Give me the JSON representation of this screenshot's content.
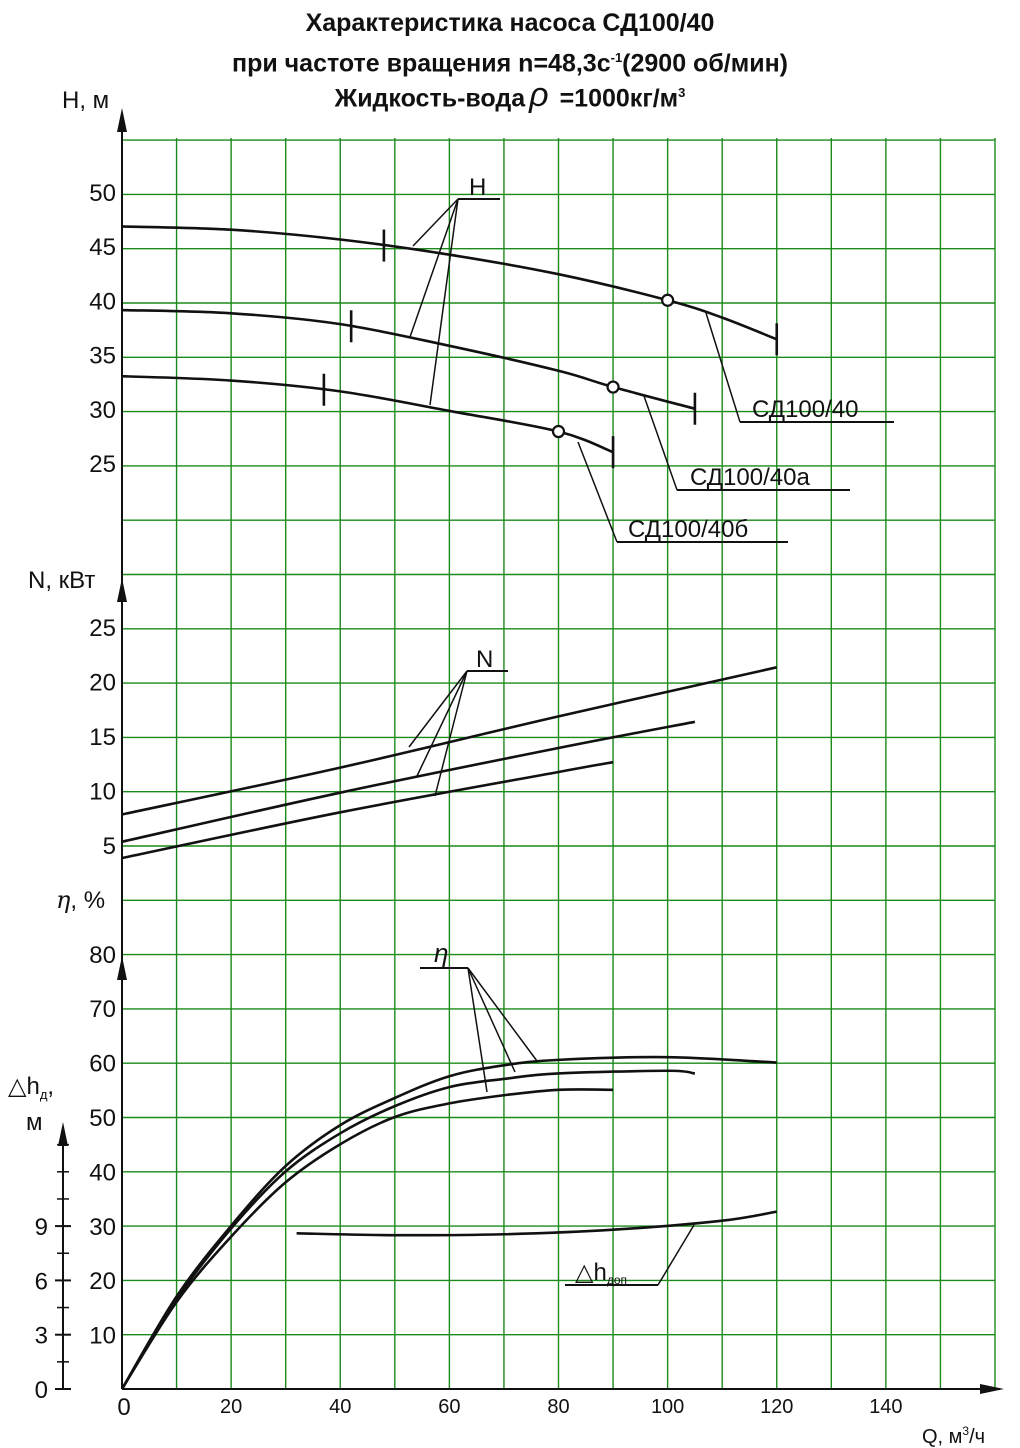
{
  "title": {
    "line1": "Характеристика насоса СД100/40",
    "line2_pre": "при частоте вращения n=48,3с",
    "line2_sup": "-1",
    "line2_post": "(2900 об/мин)",
    "line3_pre": "Жидкость-вода",
    "line3_rho": "ρ",
    "line3_post": " =1000кг/м",
    "line3_sup": "3"
  },
  "chart_data": {
    "type": "line",
    "grid": true,
    "x": {
      "label": "Q, м",
      "label_sup": "3",
      "label_post": "/ч",
      "range": [
        0,
        160
      ],
      "ticks": [
        0,
        20,
        40,
        60,
        80,
        100,
        120,
        140
      ]
    },
    "axes": {
      "H": {
        "label": "H, м",
        "range": [
          20,
          55
        ],
        "ticks": [
          25,
          30,
          35,
          40,
          45,
          50
        ]
      },
      "N": {
        "label": "N, кВт",
        "range": [
          0,
          30
        ],
        "ticks": [
          5,
          10,
          15,
          20,
          25
        ]
      },
      "eta": {
        "label_sym": "η",
        "label_post": ", %",
        "range": [
          0,
          80
        ],
        "ticks": [
          0,
          10,
          20,
          30,
          40,
          50,
          60,
          70,
          80
        ]
      },
      "dh": {
        "label_sym": "△h",
        "label_sub": "д",
        "label_post": ",",
        "label_unit": "м",
        "range": [
          0,
          18
        ],
        "ticks": [
          0,
          3,
          6,
          9
        ]
      }
    },
    "series": {
      "H": [
        {
          "name": "СД100/40",
          "points": [
            [
              0,
              46.8
            ],
            [
              20,
              46.5
            ],
            [
              40,
              45.6
            ],
            [
              60,
              44.2
            ],
            [
              80,
              42.4
            ],
            [
              100,
              40.0
            ],
            [
              110,
              38.4
            ],
            [
              120,
              36.4
            ]
          ],
          "work_range": [
            48,
            120
          ],
          "optimum": [
            100,
            40.0
          ]
        },
        {
          "name": "СД100/40а",
          "points": [
            [
              0,
              39.1
            ],
            [
              20,
              38.8
            ],
            [
              40,
              37.8
            ],
            [
              60,
              35.8
            ],
            [
              80,
              33.5
            ],
            [
              90,
              32.0
            ],
            [
              105,
              30.0
            ]
          ],
          "work_range": [
            42,
            105
          ],
          "optimum": [
            90,
            32.0
          ]
        },
        {
          "name": "СД100/40б",
          "points": [
            [
              0,
              33.0
            ],
            [
              20,
              32.6
            ],
            [
              40,
              31.6
            ],
            [
              60,
              29.8
            ],
            [
              80,
              27.9
            ],
            [
              90,
              26.0
            ]
          ],
          "work_range": [
            37,
            90
          ],
          "optimum": [
            80,
            27.9
          ]
        }
      ],
      "N": [
        {
          "points": [
            [
              0,
              7.8
            ],
            [
              40,
              12.1
            ],
            [
              80,
              16.8
            ],
            [
              120,
              21.3
            ]
          ]
        },
        {
          "points": [
            [
              0,
              5.3
            ],
            [
              40,
              9.8
            ],
            [
              80,
              13.9
            ],
            [
              105,
              16.3
            ]
          ]
        },
        {
          "points": [
            [
              0,
              3.8
            ],
            [
              40,
              8.0
            ],
            [
              80,
              11.7
            ],
            [
              90,
              12.6
            ]
          ]
        }
      ],
      "eta": [
        {
          "points": [
            [
              0,
              0
            ],
            [
              10,
              17
            ],
            [
              20,
              30
            ],
            [
              30,
              41
            ],
            [
              40,
              48.5
            ],
            [
              50,
              53.5
            ],
            [
              60,
              57.5
            ],
            [
              70,
              59.5
            ],
            [
              80,
              60.5
            ],
            [
              100,
              61
            ],
            [
              120,
              60
            ]
          ]
        },
        {
          "points": [
            [
              0,
              0
            ],
            [
              10,
              16.5
            ],
            [
              20,
              29.5
            ],
            [
              30,
              40
            ],
            [
              40,
              47
            ],
            [
              50,
              52
            ],
            [
              60,
              55.5
            ],
            [
              70,
              57
            ],
            [
              80,
              58
            ],
            [
              100,
              58.5
            ],
            [
              105,
              58
            ]
          ]
        },
        {
          "points": [
            [
              0,
              0
            ],
            [
              10,
              16
            ],
            [
              20,
              28
            ],
            [
              30,
              38
            ],
            [
              40,
              45
            ],
            [
              50,
              50
            ],
            [
              60,
              52.5
            ],
            [
              70,
              54
            ],
            [
              80,
              55
            ],
            [
              90,
              55
            ]
          ]
        }
      ],
      "dh": [
        {
          "name": "△hдоп",
          "points": [
            [
              32,
              8.6
            ],
            [
              50,
              8.5
            ],
            [
              70,
              8.55
            ],
            [
              90,
              8.8
            ],
            [
              110,
              9.3
            ],
            [
              120,
              9.8
            ]
          ]
        }
      ]
    },
    "annotations": {
      "H": "H",
      "N": "N",
      "eta": "η",
      "dh_sym": "△h",
      "dh_sub": "доп",
      "names": [
        "СД100/40",
        "СД100/40а",
        "СД100/40б"
      ]
    }
  }
}
